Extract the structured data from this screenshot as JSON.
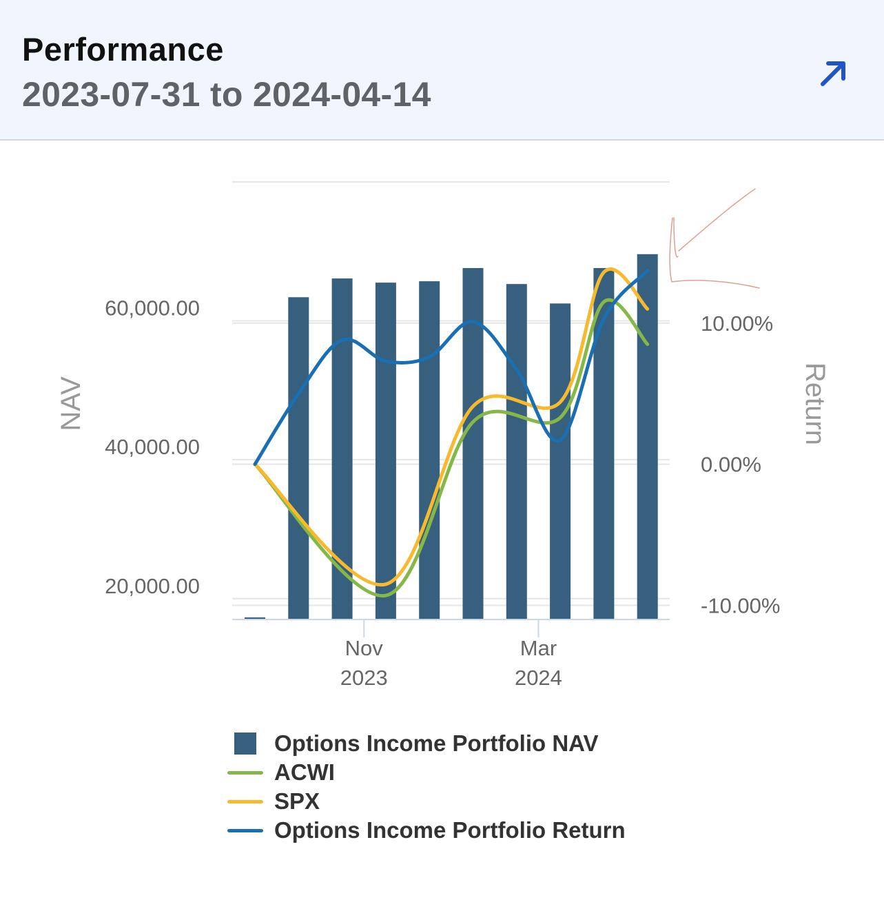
{
  "header": {
    "title": "Performance",
    "subtitle": "2023-07-31 to 2024-04-14",
    "expand_icon": "arrow-up-right-icon"
  },
  "colors": {
    "nav_bar": "#375f7e",
    "acwi": "#86b847",
    "spx": "#f7b92d",
    "return": "#1a6fb3",
    "annotation": "#e0a090",
    "header_bg": "#f1f5fd",
    "expand_icon": "#1f55c9"
  },
  "chart_data": {
    "type": "bar",
    "title": "",
    "xlabel": "",
    "y_left_label": "NAV",
    "y_right_label": "Return",
    "y_left_ticks": [
      "20,000.00",
      "40,000.00",
      "60,000.00"
    ],
    "y_left_tick_values": [
      20000,
      40000,
      60000
    ],
    "y_right_ticks": [
      "-10.00%",
      "0.00%",
      "10.00%"
    ],
    "y_right_tick_values": [
      -10,
      0,
      10
    ],
    "x_ticks": [
      {
        "month": "Nov",
        "year": "2023",
        "period": 3
      },
      {
        "month": "Mar",
        "year": "2024",
        "period": 7
      }
    ],
    "ylim_left": [
      17000,
      80000
    ],
    "ylim_right": [
      -11,
      20
    ],
    "grid": true,
    "legend_position": "bottom",
    "periods": [
      "2023-07",
      "2023-08",
      "2023-09",
      "2023-10",
      "2023-11",
      "2023-12",
      "2024-01",
      "2024-02",
      "2024-03",
      "2024-04"
    ],
    "bars": {
      "name": "Options Income Portfolio NAV",
      "values": [
        17300,
        63400,
        66100,
        65500,
        65700,
        67600,
        65300,
        62500,
        67600,
        69600
      ]
    },
    "series": [
      {
        "name": "ACWI",
        "x": [
          0,
          3,
          5,
          7,
          8,
          9
        ],
        "values": [
          0,
          -9.3,
          3.0,
          3.3,
          11.5,
          8.5
        ]
      },
      {
        "name": "SPX",
        "x": [
          0,
          3,
          5,
          7,
          8,
          9
        ],
        "values": [
          0,
          -8.5,
          4.1,
          4.4,
          13.6,
          11.0
        ]
      },
      {
        "name": "Options Income Portfolio Return",
        "x": [
          0,
          1,
          2,
          3,
          4,
          5,
          6,
          7,
          8,
          9
        ],
        "values": [
          0,
          5.0,
          8.8,
          7.3,
          7.6,
          10.1,
          6.7,
          1.7,
          10.3,
          13.7
        ]
      }
    ]
  },
  "legend": [
    {
      "label": "Options Income Portfolio NAV",
      "kind": "bar"
    },
    {
      "label": "ACWI",
      "kind": "line"
    },
    {
      "label": "SPX",
      "kind": "line"
    },
    {
      "label": "Options Income Portfolio Return",
      "kind": "line"
    }
  ]
}
